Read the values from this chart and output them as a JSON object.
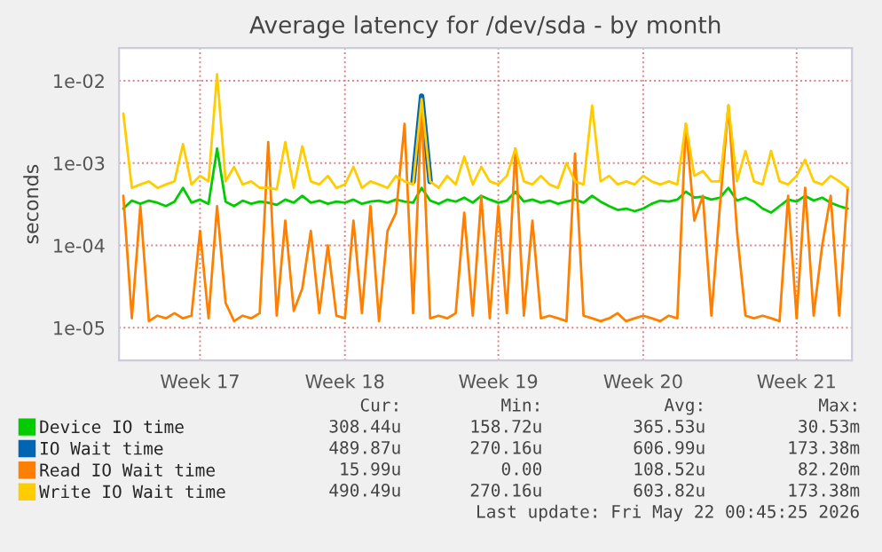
{
  "chart_data": {
    "type": "line",
    "title": "Average latency for /dev/sda - by month",
    "ylabel": "seconds",
    "log": "y",
    "grid": true,
    "legend": "bottom",
    "marker": "none",
    "line_style": "solid",
    "categories": [
      null,
      null,
      null,
      null,
      null,
      null,
      null,
      null,
      null,
      "Week 17",
      null,
      null,
      null,
      null,
      null,
      null,
      null,
      null,
      null,
      null,
      null,
      null,
      null,
      null,
      null,
      null,
      "Week 18",
      null,
      null,
      null,
      null,
      null,
      null,
      null,
      null,
      null,
      null,
      null,
      null,
      null,
      null,
      null,
      null,
      null,
      "Week 19",
      null,
      null,
      null,
      null,
      null,
      null,
      null,
      null,
      null,
      null,
      null,
      null,
      null,
      null,
      null,
      null,
      "Week 20",
      null,
      null,
      null,
      null,
      null,
      null,
      null,
      null,
      null,
      null,
      null,
      null,
      null,
      null,
      null,
      null,
      null,
      "Week 21",
      null,
      null,
      null,
      null,
      null,
      null
    ],
    "ylim": [
      4e-06,
      0.025
    ],
    "yticks": [
      {
        "value": 1e-05,
        "label": "1e-05"
      },
      {
        "value": 0.0001,
        "label": "1e-04"
      },
      {
        "value": 0.001,
        "label": "1e-03"
      },
      {
        "value": 0.01,
        "label": "1e-02"
      }
    ],
    "series": [
      {
        "name": "Device IO time",
        "color": "#00cc00",
        "values": [
          0.00028,
          0.00035,
          0.00032,
          0.00035,
          0.00033,
          0.0003,
          0.00034,
          0.0005,
          0.00033,
          0.00036,
          0.00032,
          0.0015,
          0.00034,
          0.0003,
          0.00035,
          0.00032,
          0.00034,
          0.00033,
          0.00031,
          0.00036,
          0.00033,
          0.0004,
          0.00033,
          0.00035,
          0.00032,
          0.00034,
          0.00033,
          0.00036,
          0.00032,
          0.00034,
          0.00035,
          0.00033,
          0.00036,
          0.00034,
          0.00033,
          0.0005,
          0.00035,
          0.00032,
          0.00036,
          0.00034,
          0.00038,
          0.00033,
          0.0004,
          0.00036,
          0.00033,
          0.00035,
          0.00045,
          0.00034,
          0.00036,
          0.00033,
          0.00035,
          0.00032,
          0.00034,
          0.00036,
          0.00033,
          0.0004,
          0.00034,
          0.0003,
          0.00027,
          0.00028,
          0.00026,
          0.00028,
          0.00032,
          0.00035,
          0.00034,
          0.00036,
          0.00045,
          0.00038,
          0.00039,
          0.00036,
          0.00038,
          0.0005,
          0.00035,
          0.00038,
          0.00034,
          0.00028,
          0.00025,
          0.0003,
          0.00036,
          0.00034,
          0.0004,
          0.00035,
          0.00038,
          0.00033,
          0.0003,
          0.00028
        ]
      },
      {
        "name": "IO Wait time",
        "color": "#0066b3",
        "values": [
          null,
          null,
          null,
          null,
          null,
          null,
          null,
          null,
          null,
          null,
          null,
          null,
          null,
          null,
          null,
          null,
          null,
          null,
          null,
          null,
          null,
          null,
          null,
          null,
          null,
          null,
          null,
          null,
          null,
          null,
          null,
          null,
          null,
          null,
          0.0006,
          0.0065,
          0.0006,
          null,
          null,
          null,
          null,
          null,
          null,
          null,
          null,
          null,
          null,
          null,
          null,
          null,
          null,
          null,
          null,
          null,
          null,
          null,
          null,
          null,
          null,
          null,
          null,
          null,
          null,
          null,
          null,
          null,
          null,
          null,
          null,
          null,
          null,
          null,
          null,
          null,
          null,
          null,
          null,
          null,
          null,
          null,
          null,
          null,
          null,
          null,
          null,
          null
        ]
      },
      {
        "name": "Read IO Wait time",
        "color": "#ff8000",
        "values": [
          0.0004,
          1.3e-05,
          0.0003,
          1.2e-05,
          1.4e-05,
          1.3e-05,
          1.5e-05,
          1.3e-05,
          1.4e-05,
          0.00015,
          1.3e-05,
          0.0003,
          2e-05,
          1.2e-05,
          1.4e-05,
          1.3e-05,
          1.5e-05,
          0.0018,
          1.4e-05,
          0.0002,
          1.6e-05,
          3e-05,
          0.00015,
          1.5e-05,
          0.0001,
          1.4e-05,
          1.3e-05,
          0.0002,
          1.5e-05,
          0.0003,
          1.2e-05,
          0.00015,
          0.00025,
          0.003,
          1.5e-05,
          0.005,
          1.3e-05,
          1.4e-05,
          1.3e-05,
          1.5e-05,
          0.00025,
          1.4e-05,
          0.0004,
          1.3e-05,
          0.0003,
          1.5e-05,
          0.0015,
          1.4e-05,
          0.0002,
          1.3e-05,
          1.4e-05,
          1.3e-05,
          1.2e-05,
          0.0013,
          1.4e-05,
          1.3e-05,
          1.2e-05,
          1.3e-05,
          1.5e-05,
          1.2e-05,
          1.3e-05,
          1.4e-05,
          1.3e-05,
          1.2e-05,
          1.4e-05,
          1.3e-05,
          0.003,
          0.0002,
          0.0004,
          1.4e-05,
          0.0003,
          0.005,
          0.00015,
          1.4e-05,
          1.3e-05,
          1.4e-05,
          1.3e-05,
          1.2e-05,
          0.0004,
          1.3e-05,
          0.0005,
          1.4e-05,
          0.0001,
          0.0004,
          1.4e-05,
          0.0005
        ]
      },
      {
        "name": "Write IO Wait time",
        "color": "#ffcc00",
        "values": [
          0.004,
          0.0005,
          0.00055,
          0.0006,
          0.0005,
          0.00055,
          0.0006,
          0.0017,
          0.00055,
          0.0007,
          0.0006,
          0.012,
          0.0006,
          0.0009,
          0.00055,
          0.0006,
          0.0005,
          0.0005,
          0.00048,
          0.0018,
          0.0005,
          0.0016,
          0.0006,
          0.00055,
          0.0007,
          0.0005,
          0.00055,
          0.0009,
          0.0005,
          0.0006,
          0.00055,
          0.0005,
          0.0007,
          0.0006,
          0.00055,
          0.006,
          0.0006,
          0.0005,
          0.0007,
          0.00055,
          0.0012,
          0.00055,
          0.0009,
          0.0006,
          0.00055,
          0.0007,
          0.0015,
          0.0006,
          0.00055,
          0.0007,
          0.00055,
          0.0005,
          0.001,
          0.0006,
          0.00055,
          0.005,
          0.0006,
          0.0007,
          0.00055,
          0.0006,
          0.00055,
          0.0007,
          0.0006,
          0.00055,
          0.0006,
          0.00055,
          0.003,
          0.0007,
          0.0008,
          0.0006,
          0.0006,
          0.005,
          0.0006,
          0.0014,
          0.0006,
          0.00055,
          0.0014,
          0.0006,
          0.00055,
          0.0007,
          0.0011,
          0.0006,
          0.00055,
          0.0007,
          0.0006,
          0.0005
        ]
      }
    ],
    "annotations": [
      "Cur:",
      "Min:",
      "Avg:",
      "Max:",
      "308.44u",
      "158.72u",
      "365.53u",
      "30.53m",
      "489.87u",
      "270.16u",
      "606.99u",
      "173.38m",
      "15.99u",
      "0.00",
      "108.52u",
      "82.20m",
      "490.49u",
      "270.16u",
      "603.82u",
      "173.38m",
      "Last update: Fri May 22 00:45:25 2026"
    ]
  }
}
